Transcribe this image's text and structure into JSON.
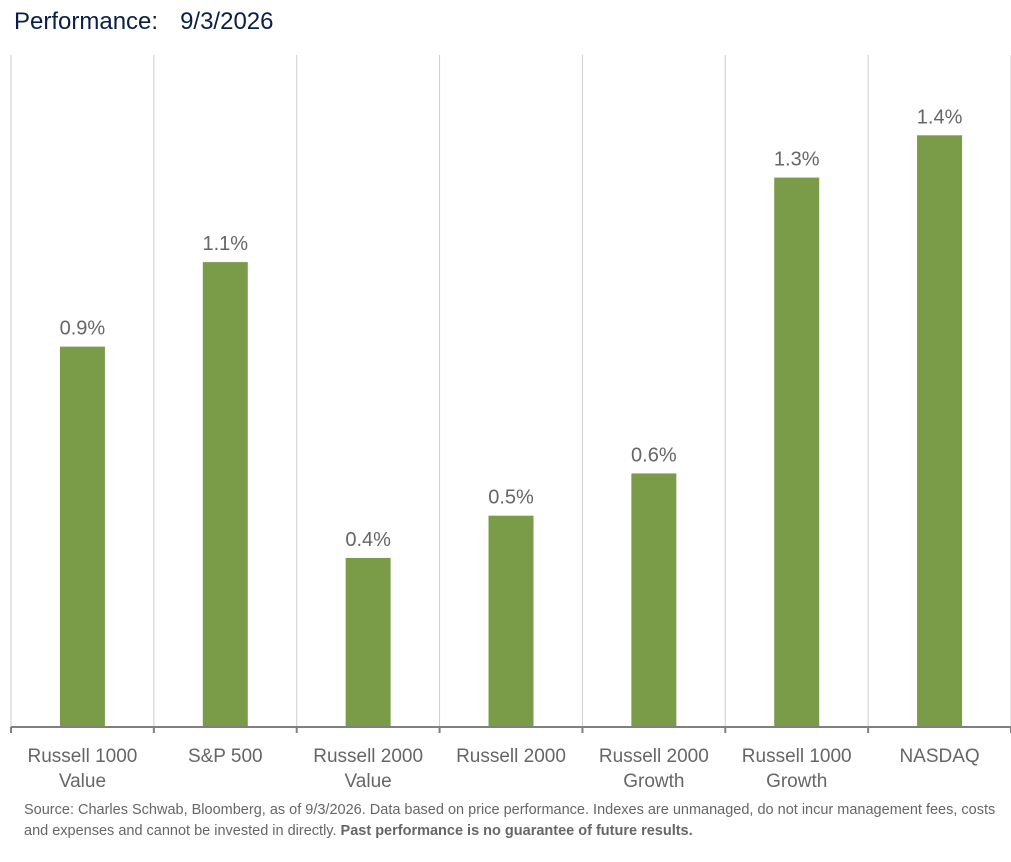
{
  "header": {
    "label": "Performance:",
    "date": "9/3/2026"
  },
  "chart_data": {
    "type": "bar",
    "title": "Performance: 9/3/2026",
    "categories": [
      [
        "Russell 1000",
        "Value"
      ],
      [
        "S&P 500"
      ],
      [
        "Russell 2000",
        "Value"
      ],
      [
        "Russell 2000"
      ],
      [
        "Russell 2000",
        "Growth"
      ],
      [
        "Russell 1000",
        "Growth"
      ],
      [
        "NASDAQ"
      ]
    ],
    "values": [
      0.9,
      1.1,
      0.4,
      0.5,
      0.6,
      1.3,
      1.4
    ],
    "data_labels": [
      "0.9%",
      "1.1%",
      "0.4%",
      "0.5%",
      "0.6%",
      "1.3%",
      "1.4%"
    ],
    "ylim": [
      0,
      1.59
    ],
    "value_format": "percent",
    "grid": "vertical separators",
    "legend": "none",
    "colors": {
      "bar": "#7a9c48",
      "separator": "#cccccc",
      "axis": "#808080",
      "label_text": "#666666"
    }
  },
  "footer": {
    "source_text": "Source: Charles Schwab, Bloomberg, as of 9/3/2026. Data based on price performance. Indexes are unmanaged, do not incur management fees, costs and expenses and cannot be invested in directly.",
    "disclaimer_bold": "Past performance is no guarantee of future results."
  }
}
